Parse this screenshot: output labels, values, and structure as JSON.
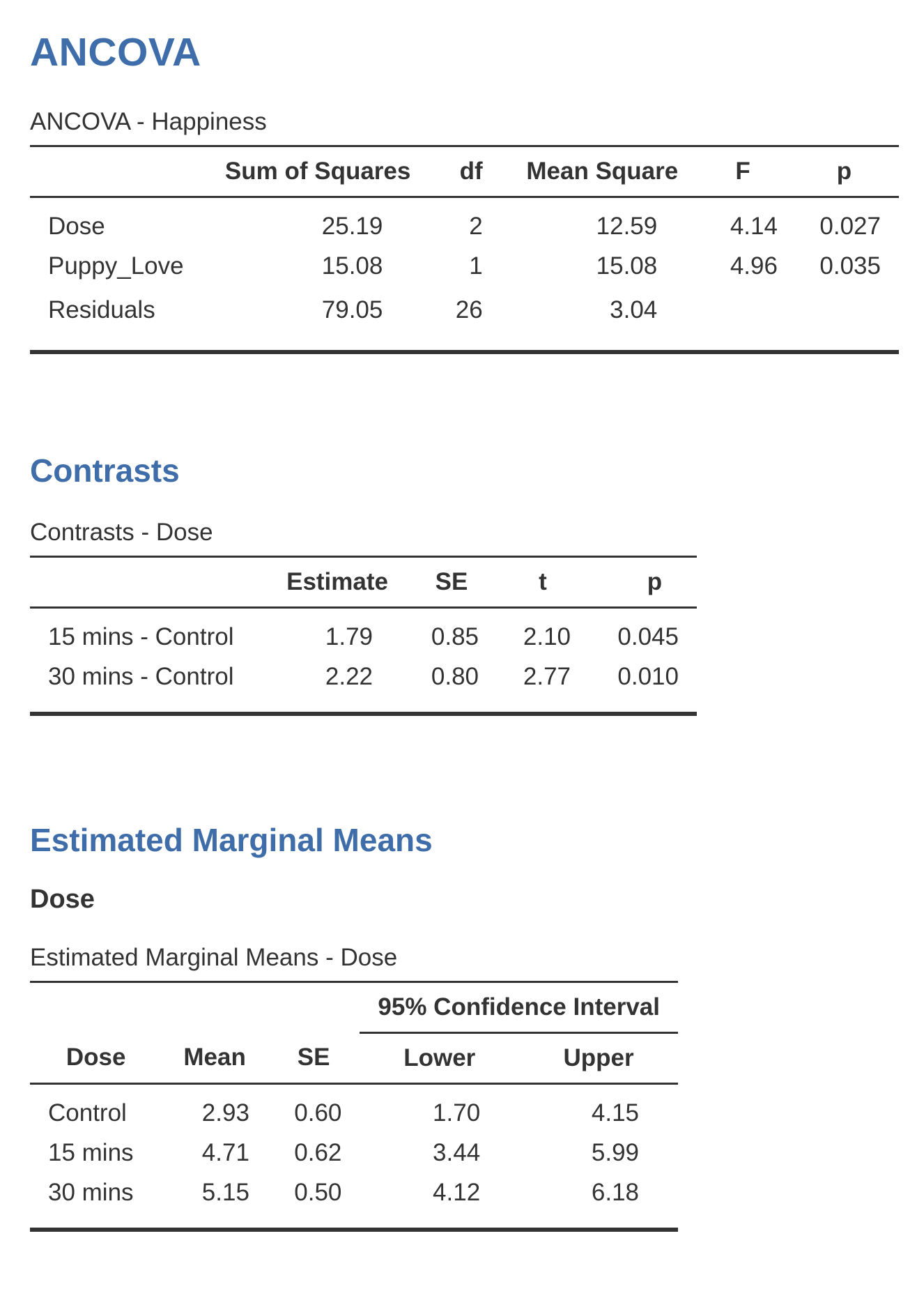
{
  "ancova": {
    "heading": "ANCOVA",
    "table_title": "ANCOVA - Happiness",
    "columns": [
      "",
      "Sum of Squares",
      "df",
      "Mean Square",
      "F",
      "p"
    ],
    "rows": [
      {
        "term": "Dose",
        "ss": "25.19",
        "df": "2",
        "ms": "12.59",
        "f": "4.14",
        "p": "0.027"
      },
      {
        "term": "Puppy_Love",
        "ss": "15.08",
        "df": "1",
        "ms": "15.08",
        "f": "4.96",
        "p": "0.035"
      },
      {
        "term": "Residuals",
        "ss": "79.05",
        "df": "26",
        "ms": "3.04",
        "f": "",
        "p": ""
      }
    ]
  },
  "contrasts": {
    "heading": "Contrasts",
    "table_title": "Contrasts - Dose",
    "columns": [
      "",
      "Estimate",
      "SE",
      "t",
      "p"
    ],
    "rows": [
      {
        "term": "15 mins - Control",
        "estimate": "1.79",
        "se": "0.85",
        "t": "2.10",
        "p": "0.045"
      },
      {
        "term": "30 mins - Control",
        "estimate": "2.22",
        "se": "0.80",
        "t": "2.77",
        "p": "0.010"
      }
    ]
  },
  "emm": {
    "heading": "Estimated Marginal Means",
    "subheading": "Dose",
    "table_title": "Estimated Marginal Means - Dose",
    "ci_header": "95% Confidence Interval",
    "columns": [
      "Dose",
      "Mean",
      "SE",
      "Lower",
      "Upper"
    ],
    "rows": [
      {
        "dose": "Control",
        "mean": "2.93",
        "se": "0.60",
        "lower": "1.70",
        "upper": "4.15"
      },
      {
        "dose": "15 mins",
        "mean": "4.71",
        "se": "0.62",
        "lower": "3.44",
        "upper": "5.99"
      },
      {
        "dose": "30 mins",
        "mean": "5.15",
        "se": "0.50",
        "lower": "4.12",
        "upper": "6.18"
      }
    ]
  }
}
